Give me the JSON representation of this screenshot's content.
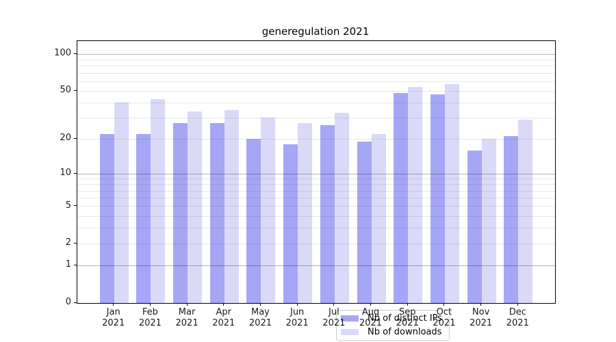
{
  "title": "generegulation 2021",
  "chart_data": {
    "type": "bar",
    "title": "generegulation 2021",
    "categories": [
      "Jan",
      "Feb",
      "Mar",
      "Apr",
      "May",
      "Jun",
      "Jul",
      "Aug",
      "Sep",
      "Oct",
      "Nov",
      "Dec"
    ],
    "category_year_line": "2021",
    "series": [
      {
        "name": "Nb of distinct IPs",
        "color": "#a6a6f6",
        "values": [
          22,
          22,
          27,
          27,
          20,
          18,
          26,
          19,
          48,
          47,
          16,
          21
        ]
      },
      {
        "name": "Nb of downloads",
        "color": "#dadaf8",
        "values": [
          40,
          43,
          34,
          35,
          30,
          27,
          33,
          22,
          54,
          57,
          20,
          29
        ]
      }
    ],
    "yscale": "log1p",
    "ylim": [
      0,
      128
    ],
    "yticks": [
      0,
      1,
      2,
      5,
      10,
      20,
      50,
      100
    ],
    "grid": {
      "major_ticks": [
        1,
        10,
        100
      ],
      "minor_ticks": [
        2,
        3,
        4,
        5,
        6,
        7,
        8,
        9,
        20,
        30,
        40,
        50,
        60,
        70,
        80,
        90
      ],
      "major_color": "#b3b3b3",
      "minor_color": "#e8e8e8"
    },
    "legend": {
      "entries": [
        "Nb of distinct IPs",
        "Nb of downloads"
      ],
      "position": "lower center"
    },
    "xlabel": "",
    "ylabel": ""
  }
}
